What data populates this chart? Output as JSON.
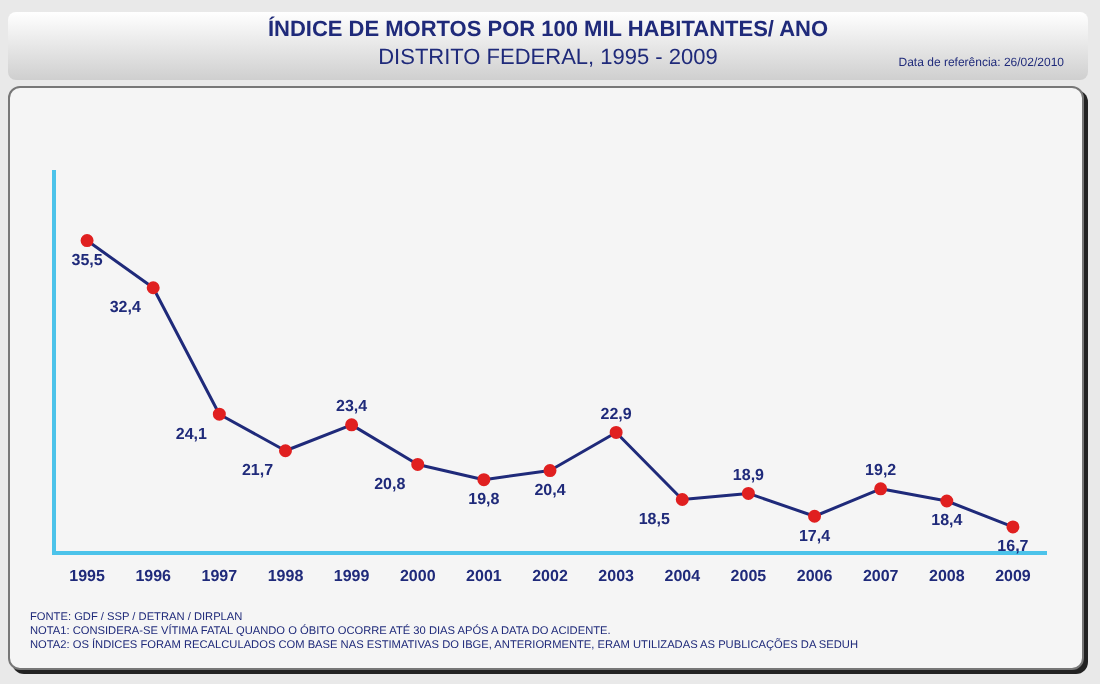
{
  "chart_data": {
    "type": "line",
    "title": "ÍNDICE DE MORTOS  POR 100 MIL HABITANTES/ ANO",
    "subtitle": "DISTRITO FEDERAL, 1995 - 2009",
    "categories": [
      "1995",
      "1996",
      "1997",
      "1998",
      "1999",
      "2000",
      "2001",
      "2002",
      "2003",
      "2004",
      "2005",
      "2006",
      "2007",
      "2008",
      "2009"
    ],
    "series": [
      {
        "color": "#1f2a7a",
        "values": [
          35.5,
          32.4,
          24.1,
          21.7,
          23.4,
          20.8,
          19.8,
          20.4,
          22.9,
          18.5,
          18.9,
          17.4,
          19.2,
          18.4,
          16.7
        ],
        "value_labels": [
          "35,5",
          "32,4",
          "24,1",
          "21,7",
          "23,4",
          "20,8",
          "19,8",
          "20,4",
          "22,9",
          "18,5",
          "18,9",
          "17,4",
          "19,2",
          "18,4",
          "16,7"
        ]
      }
    ],
    "marker": "circle",
    "tick_labels": "x",
    "grid": false,
    "legend": false,
    "annotations": [
      "Data de referência: 26/02/2010",
      "FONTE: GDF / SSP / DETRAN / DIRPLAN",
      "NOTA1: CONSIDERA-SE VÍTIMA FATAL QUANDO O ÓBITO OCORRE ATÉ 30 DIAS APÓS A DATA DO ACIDENTE.",
      "NOTA2: OS ÍNDICES FORAM RECALCULADOS COM BASE NAS ESTIMATIVAS DO IBGE, ANTERIORMENTE, ERAM UTILIZADAS AS PUBLICAÇÕES DA SEDUH"
    ]
  }
}
